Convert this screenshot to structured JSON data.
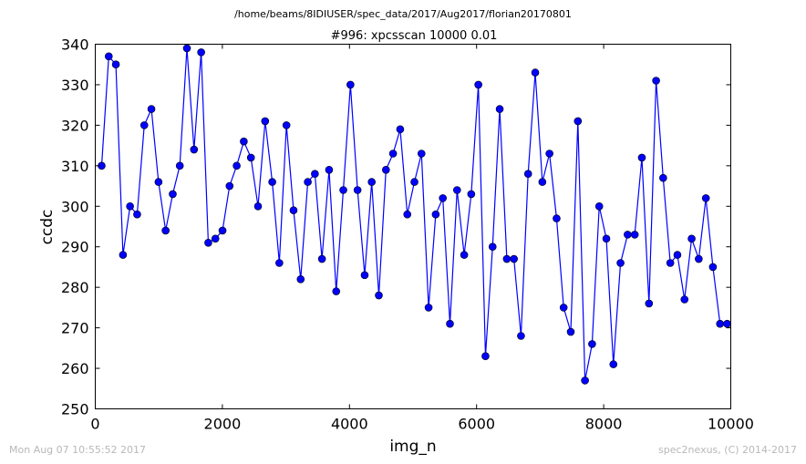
{
  "header": {
    "path": "/home/beams/8IDIUSER/spec_data/2017/Aug2017/florian20170801"
  },
  "footer": {
    "timestamp": "Mon Aug 07 10:55:52 2017",
    "credit": "spec2nexus, (C) 2014-2017"
  },
  "colors": {
    "series": "#0000ff",
    "axis": "#000000",
    "footer": "#b8b8b8"
  },
  "chart_data": {
    "type": "line",
    "title": "#996: xpcsscan 10000 0.01",
    "xlabel": "img_n",
    "ylabel": "ccdc",
    "xlim": [
      0,
      10000
    ],
    "ylim": [
      250,
      340
    ],
    "xticks": [
      0,
      2000,
      4000,
      6000,
      8000,
      10000
    ],
    "yticks": [
      250,
      260,
      270,
      280,
      290,
      300,
      310,
      320,
      330,
      340
    ],
    "grid": false,
    "marker": "circle",
    "x": [
      100,
      212,
      324,
      436,
      547,
      659,
      771,
      883,
      995,
      1107,
      1219,
      1330,
      1442,
      1554,
      1666,
      1778,
      1890,
      2002,
      2113,
      2225,
      2337,
      2449,
      2561,
      2673,
      2785,
      2896,
      3008,
      3120,
      3232,
      3344,
      3456,
      3567,
      3679,
      3791,
      3903,
      4015,
      4127,
      4239,
      4350,
      4462,
      4574,
      4686,
      4798,
      4910,
      5022,
      5133,
      5245,
      5357,
      5469,
      5581,
      5693,
      5805,
      5916,
      6028,
      6140,
      6252,
      6364,
      6476,
      6588,
      6699,
      6811,
      6923,
      7035,
      7147,
      7259,
      7370,
      7482,
      7594,
      7706,
      7818,
      7930,
      8042,
      8153,
      8265,
      8377,
      8489,
      8601,
      8713,
      8825,
      8936,
      9048,
      9160,
      9272,
      9384,
      9496,
      9608,
      9719,
      9831,
      9943,
      10055
    ],
    "y": [
      310,
      337,
      335,
      288,
      300,
      298,
      320,
      324,
      306,
      294,
      303,
      310,
      339,
      314,
      338,
      291,
      292,
      294,
      305,
      310,
      316,
      312,
      300,
      321,
      306,
      286,
      320,
      299,
      282,
      306,
      308,
      287,
      309,
      279,
      304,
      330,
      304,
      283,
      306,
      278,
      309,
      313,
      319,
      298,
      306,
      313,
      275,
      298,
      302,
      271,
      304,
      288,
      303,
      330,
      263,
      290,
      324,
      287,
      287,
      268,
      308,
      333,
      306,
      313,
      297,
      275,
      269,
      321,
      257,
      266,
      300,
      292,
      261,
      286,
      293,
      293,
      312,
      276,
      331,
      307,
      286,
      288,
      277,
      292,
      287,
      302,
      285,
      271,
      271,
      271
    ]
  }
}
